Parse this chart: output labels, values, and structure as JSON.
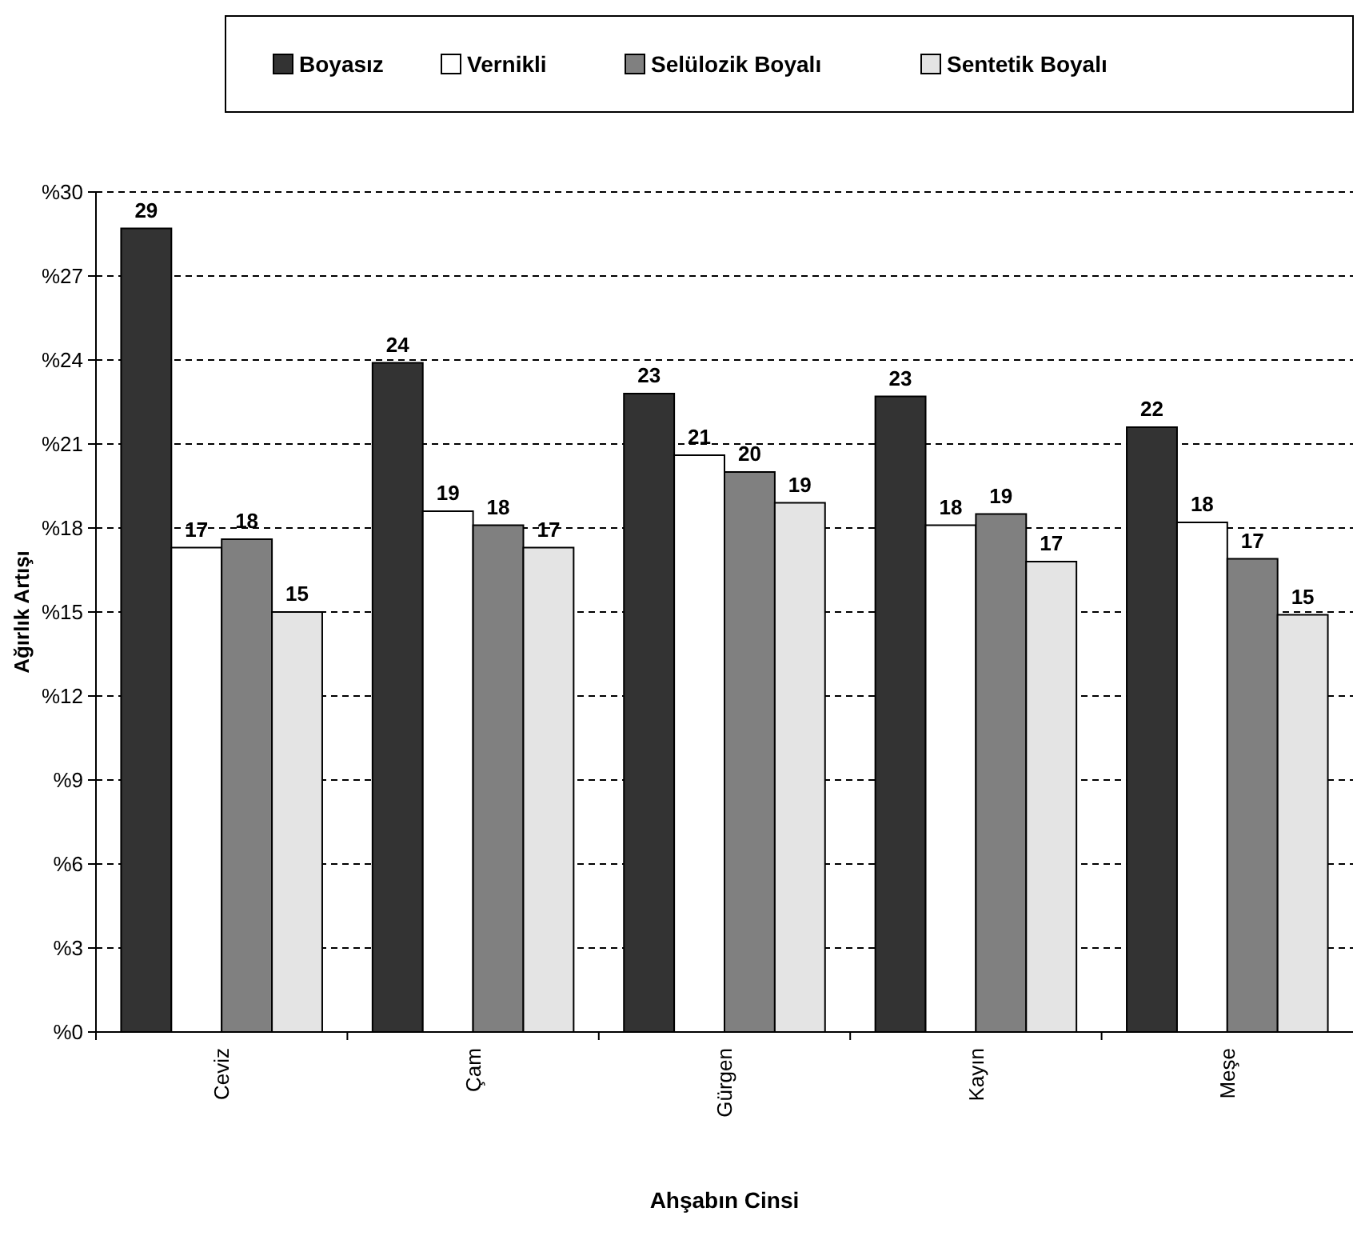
{
  "chart_data": {
    "type": "bar",
    "xlabel": "Ahşabın Cinsi",
    "ylabel": "Ağırlık Artışı",
    "categories": [
      "Ceviz",
      "Çam",
      "Gürgen",
      "Kayın",
      "Meşe"
    ],
    "series": [
      {
        "name": "Boyasız",
        "color": "#333333",
        "values": [
          28.7,
          23.9,
          22.8,
          22.7,
          21.6
        ],
        "value_labels": [
          "29",
          "24",
          "23",
          "23",
          "22"
        ]
      },
      {
        "name": "Vernikli",
        "color": "#ffffff",
        "values": [
          17.3,
          18.6,
          20.6,
          18.1,
          18.2
        ],
        "value_labels": [
          "17",
          "19",
          "21",
          "18",
          "18"
        ]
      },
      {
        "name": "Selülozik Boyalı",
        "color": "#808080",
        "values": [
          17.6,
          18.1,
          20.0,
          18.5,
          16.9
        ],
        "value_labels": [
          "18",
          "18",
          "20",
          "19",
          "17"
        ]
      },
      {
        "name": "Sentetik Boyalı",
        "color": "#e4e4e4",
        "values": [
          15.0,
          17.3,
          18.9,
          16.8,
          14.9
        ],
        "value_labels": [
          "15",
          "17",
          "19",
          "17",
          "15"
        ]
      }
    ],
    "ylim": [
      0,
      30
    ],
    "yticks": [
      {
        "value": 0,
        "label": "%0"
      },
      {
        "value": 3,
        "label": "%3"
      },
      {
        "value": 6,
        "label": "%6"
      },
      {
        "value": 9,
        "label": "%9"
      },
      {
        "value": 12,
        "label": "%12"
      },
      {
        "value": 15,
        "label": "%15"
      },
      {
        "value": 18,
        "label": "%18"
      },
      {
        "value": 21,
        "label": "%21"
      },
      {
        "value": 24,
        "label": "%24"
      },
      {
        "value": 27,
        "label": "%27"
      },
      {
        "value": 30,
        "label": "%30"
      }
    ],
    "grid": "y",
    "legend": "top right"
  }
}
